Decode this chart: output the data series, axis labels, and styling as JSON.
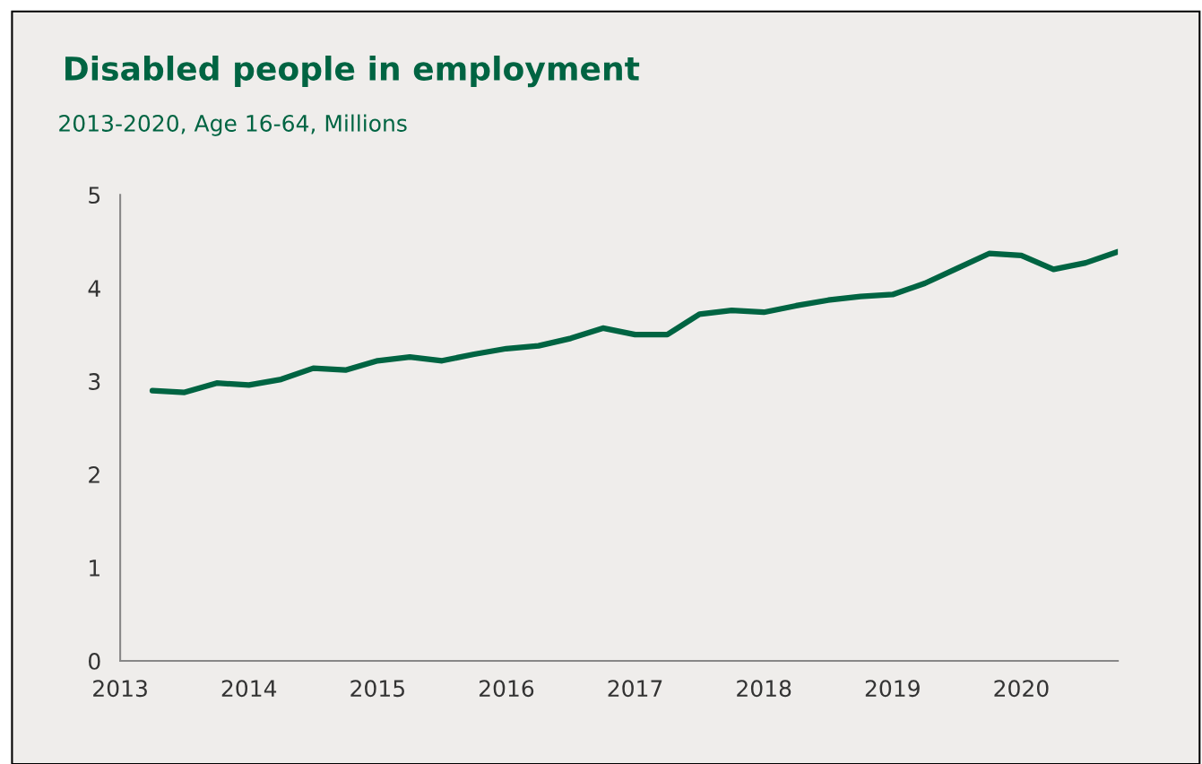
{
  "chart_data": {
    "type": "line",
    "title": "Disabled people in employment",
    "subtitle": "2013-2020, Age 16-64, Millions",
    "x": [
      2013.25,
      2013.5,
      2013.75,
      2014,
      2014.25,
      2014.5,
      2014.75,
      2015,
      2015.25,
      2015.5,
      2015.75,
      2016,
      2016.25,
      2016.5,
      2016.75,
      2017,
      2017.25,
      2017.5,
      2017.75,
      2018,
      2018.25,
      2018.5,
      2018.75,
      2019,
      2019.25,
      2019.5,
      2019.75,
      2020,
      2020.25,
      2020.5,
      2020.75
    ],
    "series": [
      {
        "color": "#006442",
        "values": [
          2.9,
          2.88,
          2.98,
          2.96,
          3.02,
          3.14,
          3.12,
          3.22,
          3.26,
          3.22,
          3.29,
          3.35,
          3.38,
          3.46,
          3.57,
          3.5,
          3.5,
          3.72,
          3.76,
          3.74,
          3.81,
          3.87,
          3.91,
          3.93,
          4.05,
          4.21,
          4.37,
          4.35,
          4.2,
          4.27,
          4.39
        ]
      }
    ],
    "xlim": [
      2013,
      2020.75
    ],
    "xticks": [
      2013,
      2014,
      2015,
      2016,
      2017,
      2018,
      2019,
      2020
    ],
    "ylim": [
      0,
      5
    ],
    "yticks": [
      0,
      1,
      2,
      3,
      4,
      5
    ],
    "grid": false,
    "marker": "none",
    "line_style": "solid"
  }
}
